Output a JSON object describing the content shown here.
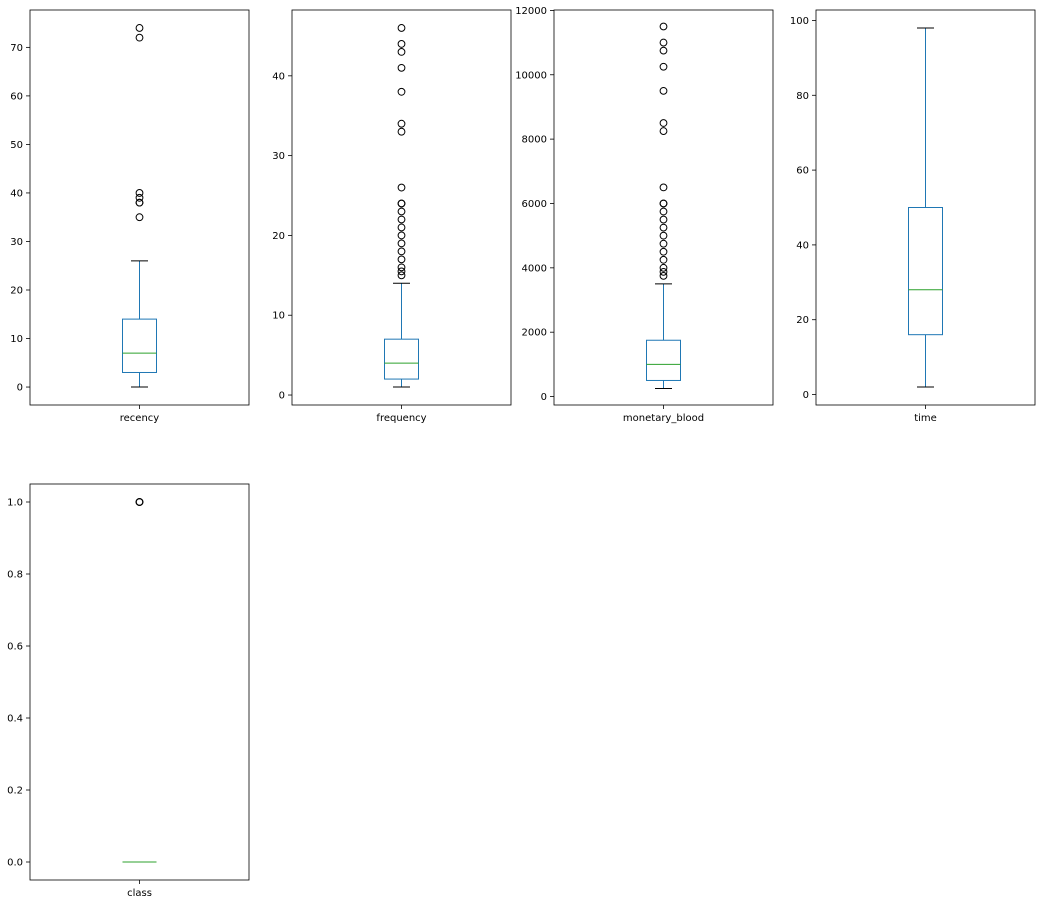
{
  "chart_data": [
    {
      "type": "box",
      "xlabel": "recency",
      "ylim": [
        -3.7,
        77.7
      ],
      "yticks": [
        0,
        10,
        20,
        30,
        40,
        50,
        60,
        70
      ],
      "box": {
        "whisker_low": 0,
        "q1": 3,
        "median": 7,
        "q3": 14,
        "whisker_high": 26
      },
      "outliers": [
        35,
        38,
        38,
        39,
        40,
        72,
        74
      ]
    },
    {
      "type": "box",
      "xlabel": "frequency",
      "ylim": [
        -1.25,
        48.25
      ],
      "yticks": [
        0,
        10,
        20,
        30,
        40
      ],
      "box": {
        "whisker_low": 1,
        "q1": 2,
        "median": 4,
        "q3": 7,
        "whisker_high": 14
      },
      "outliers": [
        15,
        15.5,
        16,
        17,
        18,
        19,
        20,
        21,
        22,
        23,
        24,
        24,
        26,
        33,
        34,
        38,
        41,
        43,
        44,
        46
      ]
    },
    {
      "type": "box",
      "xlabel": "monetary_blood",
      "ylim": [
        -262.5,
        12012.5
      ],
      "yticks": [
        0,
        2000,
        4000,
        6000,
        8000,
        10000,
        12000
      ],
      "box": {
        "whisker_low": 250,
        "q1": 500,
        "median": 1000,
        "q3": 1750,
        "whisker_high": 3500
      },
      "outliers": [
        3750,
        3875,
        4000,
        4250,
        4500,
        4750,
        5000,
        5250,
        5500,
        5750,
        6000,
        6000,
        6500,
        8250,
        8500,
        9500,
        10250,
        10750,
        11000,
        11500
      ]
    },
    {
      "type": "box",
      "xlabel": "time",
      "ylim": [
        -2.8,
        102.8
      ],
      "yticks": [
        0,
        20,
        40,
        60,
        80,
        100
      ],
      "box": {
        "whisker_low": 2,
        "q1": 16,
        "median": 28,
        "q3": 50,
        "whisker_high": 98
      },
      "outliers": []
    },
    {
      "type": "box",
      "xlabel": "class",
      "ylim": [
        -0.05,
        1.05
      ],
      "yticks": [
        "0.0",
        "0.2",
        "0.4",
        "0.6",
        "0.8",
        "1.0"
      ],
      "box": {
        "whisker_low": 0,
        "q1": 0,
        "median": 0,
        "q3": 0,
        "whisker_high": 0
      },
      "outliers": [
        1,
        1,
        1
      ]
    }
  ],
  "colors": {
    "box": "#1f77b4",
    "median": "#2ca02c",
    "whisker_cap": "#000000",
    "flier": "#000000"
  }
}
